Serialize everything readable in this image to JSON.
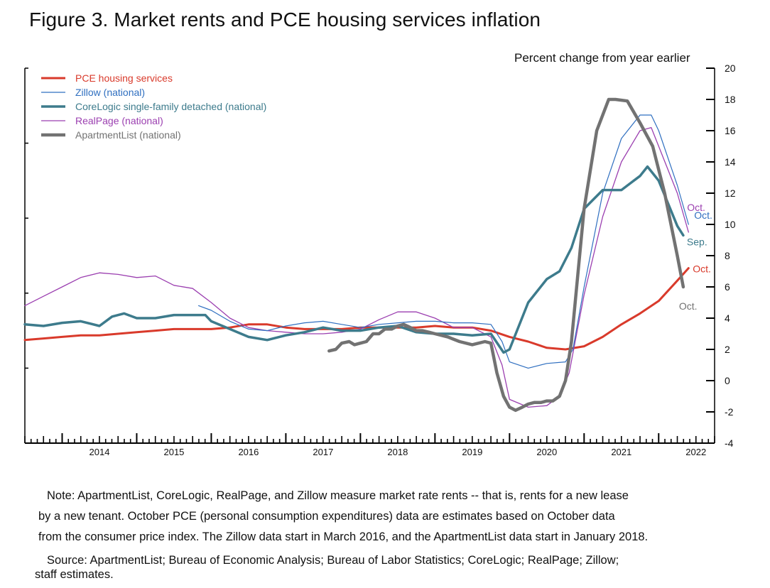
{
  "figure": {
    "title": "Figure 3. Market rents and PCE housing services inflation",
    "unit_label": "Percent change from year earlier",
    "note_lines": [
      "Note: ApartmentList, CoreLogic, RealPage, and Zillow measure market rate rents -- that is, rents for a new lease",
      "by a new tenant. October PCE (personal consumption expenditures) data are estimates based on October data",
      "from the consumer price index. The Zillow data start in March 2016, and the ApartmentList data start in January 2018."
    ],
    "source_lines": [
      "Source: ApartmentList; Bureau of Economic Analysis; Bureau of Labor Statistics; CoreLogic; RealPage; Zillow;",
      "staff estimates."
    ]
  },
  "chart_data": {
    "type": "line",
    "ylim": [
      -4,
      20
    ],
    "xlim": [
      2013.5,
      2022.75
    ],
    "y_ticks": [
      -4,
      -2,
      0,
      2,
      4,
      6,
      8,
      10,
      12,
      14,
      16,
      18,
      20
    ],
    "x_tick_labels": [
      "2014",
      "2015",
      "2016",
      "2017",
      "2018",
      "2019",
      "2020",
      "2021",
      "2022"
    ],
    "grid": false,
    "legend_position": "top-left",
    "series": [
      {
        "name": "PCE housing services",
        "color": "#d93a2b",
        "width": 3,
        "end_label": "Oct.",
        "x": [
          2013.5,
          2013.75,
          2014.0,
          2014.25,
          2014.5,
          2014.75,
          2015.0,
          2015.25,
          2015.5,
          2015.75,
          2016.0,
          2016.25,
          2016.5,
          2016.75,
          2017.0,
          2017.25,
          2017.5,
          2017.75,
          2018.0,
          2018.25,
          2018.5,
          2018.75,
          2019.0,
          2019.25,
          2019.5,
          2019.75,
          2020.0,
          2020.25,
          2020.5,
          2020.75,
          2021.0,
          2021.25,
          2021.5,
          2021.75,
          2022.0,
          2022.25,
          2022.4
        ],
        "y": [
          2.6,
          2.7,
          2.8,
          2.9,
          2.9,
          3.0,
          3.1,
          3.2,
          3.3,
          3.3,
          3.3,
          3.4,
          3.6,
          3.6,
          3.4,
          3.3,
          3.3,
          3.3,
          3.4,
          3.4,
          3.4,
          3.4,
          3.5,
          3.4,
          3.4,
          3.2,
          2.8,
          2.5,
          2.1,
          2.0,
          2.2,
          2.8,
          3.6,
          4.3,
          5.1,
          6.4,
          7.2
        ]
      },
      {
        "name": "Zillow (national)",
        "color": "#2f6fc0",
        "width": 1.2,
        "end_label": "Oct.",
        "x": [
          2015.83,
          2016.0,
          2016.25,
          2016.5,
          2016.75,
          2017.0,
          2017.25,
          2017.5,
          2017.75,
          2018.0,
          2018.25,
          2018.5,
          2018.75,
          2019.0,
          2019.25,
          2019.5,
          2019.75,
          2019.9,
          2020.0,
          2020.25,
          2020.5,
          2020.75,
          2020.85,
          2021.0,
          2021.25,
          2021.5,
          2021.75,
          2021.9,
          2022.0,
          2022.25,
          2022.4
        ],
        "y": [
          4.8,
          4.5,
          3.8,
          3.3,
          3.2,
          3.5,
          3.7,
          3.8,
          3.6,
          3.4,
          3.6,
          3.7,
          3.8,
          3.8,
          3.7,
          3.7,
          3.6,
          2.5,
          1.2,
          0.8,
          1.1,
          1.2,
          2.0,
          6.0,
          12.0,
          15.5,
          17.0,
          17.0,
          16.0,
          12.5,
          10.0
        ]
      },
      {
        "name": "CoreLogic single-family detached (national)",
        "color": "#3d7b8c",
        "width": 3.5,
        "end_label": "Sep.",
        "x": [
          2013.5,
          2013.75,
          2014.0,
          2014.25,
          2014.5,
          2014.67,
          2014.83,
          2015.0,
          2015.25,
          2015.5,
          2015.67,
          2015.92,
          2016.0,
          2016.25,
          2016.5,
          2016.75,
          2017.0,
          2017.25,
          2017.5,
          2017.75,
          2018.0,
          2018.25,
          2018.5,
          2018.75,
          2019.0,
          2019.25,
          2019.5,
          2019.75,
          2019.92,
          2020.0,
          2020.25,
          2020.5,
          2020.67,
          2020.83,
          2021.0,
          2021.25,
          2021.5,
          2021.75,
          2021.85,
          2022.0,
          2022.25,
          2022.33
        ],
        "y": [
          3.6,
          3.5,
          3.7,
          3.8,
          3.5,
          4.1,
          4.3,
          4.0,
          4.0,
          4.2,
          4.2,
          4.2,
          3.8,
          3.3,
          2.8,
          2.6,
          2.9,
          3.1,
          3.4,
          3.2,
          3.2,
          3.4,
          3.5,
          3.1,
          3.0,
          3.0,
          2.9,
          3.0,
          1.8,
          2.0,
          5.0,
          6.5,
          7.0,
          8.5,
          11.0,
          12.2,
          12.2,
          13.1,
          13.7,
          12.8,
          9.9,
          9.3
        ]
      },
      {
        "name": "RealPage (national)",
        "color": "#9b3fb0",
        "width": 1.3,
        "end_label": "Oct.",
        "x": [
          2013.5,
          2013.75,
          2014.0,
          2014.25,
          2014.5,
          2014.75,
          2015.0,
          2015.25,
          2015.5,
          2015.75,
          2016.0,
          2016.25,
          2016.5,
          2016.75,
          2017.0,
          2017.25,
          2017.5,
          2017.75,
          2018.0,
          2018.25,
          2018.5,
          2018.75,
          2019.0,
          2019.25,
          2019.5,
          2019.75,
          2019.9,
          2020.0,
          2020.25,
          2020.5,
          2020.67,
          2020.8,
          2021.0,
          2021.25,
          2021.5,
          2021.75,
          2021.9,
          2022.0,
          2022.25,
          2022.4
        ],
        "y": [
          4.8,
          5.4,
          6.0,
          6.6,
          6.9,
          6.8,
          6.6,
          6.7,
          6.1,
          5.9,
          5.0,
          4.0,
          3.4,
          3.2,
          3.1,
          3.0,
          3.0,
          3.1,
          3.3,
          3.9,
          4.4,
          4.4,
          4.0,
          3.4,
          3.4,
          2.8,
          1.0,
          -1.2,
          -1.7,
          -1.6,
          -1.0,
          0.5,
          5.5,
          10.5,
          14.0,
          16.0,
          16.2,
          15.0,
          12.0,
          9.5
        ]
      },
      {
        "name": "ApartmentList (national)",
        "color": "#727272",
        "width": 4.5,
        "end_label": "Oct.",
        "x": [
          2017.58,
          2017.67,
          2017.75,
          2017.85,
          2017.92,
          2018.0,
          2018.08,
          2018.17,
          2018.25,
          2018.33,
          2018.42,
          2018.5,
          2018.58,
          2018.67,
          2018.75,
          2018.83,
          2018.92,
          2019.0,
          2019.17,
          2019.33,
          2019.5,
          2019.67,
          2019.75,
          2019.83,
          2019.92,
          2020.0,
          2020.08,
          2020.17,
          2020.25,
          2020.33,
          2020.42,
          2020.5,
          2020.58,
          2020.67,
          2020.75,
          2020.83,
          2020.92,
          2021.0,
          2021.17,
          2021.33,
          2021.42,
          2021.58,
          2021.75,
          2021.92,
          2022.08,
          2022.25,
          2022.33
        ],
        "y": [
          1.9,
          2.0,
          2.4,
          2.5,
          2.3,
          2.4,
          2.5,
          3.0,
          3.0,
          3.3,
          3.3,
          3.5,
          3.6,
          3.4,
          3.2,
          3.2,
          3.1,
          3.0,
          2.8,
          2.5,
          2.3,
          2.5,
          2.4,
          0.5,
          -1.0,
          -1.7,
          -1.9,
          -1.7,
          -1.5,
          -1.4,
          -1.4,
          -1.3,
          -1.3,
          -1.0,
          0.0,
          2.5,
          7.0,
          11.0,
          16.0,
          18.0,
          18.0,
          17.9,
          16.5,
          15.0,
          12.0,
          8.0,
          6.0
        ]
      }
    ]
  }
}
